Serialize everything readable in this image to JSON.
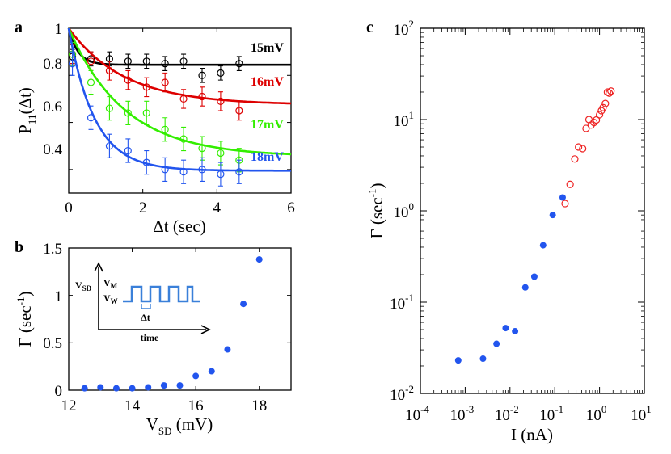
{
  "chart_data": [
    {
      "panel": "a",
      "type": "scatter",
      "xlabel": "Δt (sec)",
      "ylabel": {
        "main": "P",
        "sub": "11",
        "tail": "(Δt)"
      },
      "xlim": [
        0,
        6
      ],
      "ylim": [
        0.3,
        1.0
      ],
      "xticks": [
        "0",
        "2",
        "4",
        "6"
      ],
      "yticks": [
        "1",
        "0.8",
        "0.6",
        "0.4"
      ],
      "series": [
        {
          "name": "15mV",
          "color": "#000000",
          "plateau": 0.845,
          "tau": 0.25,
          "x": [
            0.1,
            0.6,
            1.1,
            1.6,
            2.1,
            2.6,
            3.1,
            3.6,
            4.1,
            4.6
          ],
          "y": [
            0.88,
            0.87,
            0.87,
            0.86,
            0.86,
            0.85,
            0.86,
            0.8,
            0.81,
            0.85
          ],
          "err": [
            0.03,
            0.03,
            0.03,
            0.03,
            0.03,
            0.03,
            0.03,
            0.03,
            0.03,
            0.03
          ]
        },
        {
          "name": "16mV",
          "color": "#dd0000",
          "plateau": 0.675,
          "tau": 1.5,
          "x": [
            0.1,
            0.6,
            1.1,
            1.6,
            2.1,
            2.6,
            3.1,
            3.6,
            4.1,
            4.6
          ],
          "y": [
            0.89,
            0.86,
            0.82,
            0.78,
            0.75,
            0.77,
            0.7,
            0.71,
            0.69,
            0.65
          ],
          "err": [
            0.04,
            0.04,
            0.04,
            0.04,
            0.04,
            0.04,
            0.04,
            0.04,
            0.04,
            0.04
          ]
        },
        {
          "name": "17mV",
          "color": "#33ee00",
          "plateau": 0.455,
          "tau": 1.5,
          "x": [
            0.1,
            0.6,
            1.1,
            1.6,
            2.1,
            2.6,
            3.1,
            3.6,
            4.1,
            4.6
          ],
          "y": [
            0.89,
            0.77,
            0.66,
            0.64,
            0.64,
            0.57,
            0.53,
            0.49,
            0.47,
            0.44
          ],
          "err": [
            0.05,
            0.05,
            0.05,
            0.05,
            0.05,
            0.05,
            0.05,
            0.05,
            0.05,
            0.05
          ]
        },
        {
          "name": "18mV",
          "color": "#2255ee",
          "plateau": 0.395,
          "tau": 0.7,
          "x": [
            0.1,
            0.6,
            1.1,
            1.6,
            2.1,
            2.6,
            3.1,
            3.6,
            4.1,
            4.6
          ],
          "y": [
            0.85,
            0.62,
            0.5,
            0.48,
            0.43,
            0.4,
            0.39,
            0.4,
            0.38,
            0.39
          ],
          "err": [
            0.05,
            0.05,
            0.05,
            0.05,
            0.05,
            0.05,
            0.05,
            0.05,
            0.05,
            0.05
          ]
        }
      ]
    },
    {
      "panel": "b",
      "type": "scatter",
      "xlabel": {
        "main": "V",
        "sub": "SD",
        "tail": " (mV)"
      },
      "ylabel": {
        "main": "Γ (sec",
        "sup": "-1",
        "tail": ")"
      },
      "xlim": [
        12,
        19
      ],
      "ylim": [
        0,
        1.5
      ],
      "xticks": [
        "12",
        "14",
        "16",
        "18"
      ],
      "yticks": [
        "0",
        "0.5",
        "1",
        "1.5"
      ],
      "color": "#2255ee",
      "x": [
        12.5,
        13.0,
        13.5,
        14.0,
        14.5,
        15.0,
        15.5,
        16.0,
        16.5,
        17.0,
        17.5,
        18.0
      ],
      "y": [
        0.02,
        0.03,
        0.02,
        0.02,
        0.03,
        0.05,
        0.05,
        0.15,
        0.2,
        0.43,
        0.91,
        1.38
      ],
      "inset": {
        "vsd": {
          "main": "V",
          "sub": "SD"
        },
        "vm": {
          "main": "V",
          "sub": "M"
        },
        "vw": {
          "main": "V",
          "sub": "W"
        },
        "dt": "Δt",
        "time": "time"
      }
    },
    {
      "panel": "c",
      "type": "scatter",
      "xscale": "log",
      "yscale": "log",
      "xlabel": "I (nA)",
      "ylabel": {
        "main": "Γ (sec",
        "sup": "-1",
        "tail": ")"
      },
      "xlim_exp": [
        -4,
        1
      ],
      "ylim_exp": [
        -2,
        2
      ],
      "xticks": [
        {
          "base": "10",
          "exp": "-4"
        },
        {
          "base": "10",
          "exp": "-3"
        },
        {
          "base": "10",
          "exp": "-2"
        },
        {
          "base": "10",
          "exp": "-1"
        },
        {
          "base": "10",
          "exp": "0"
        },
        {
          "base": "10",
          "exp": "1"
        }
      ],
      "yticks": [
        {
          "base": "10",
          "exp": "2"
        },
        {
          "base": "10",
          "exp": "1"
        },
        {
          "base": "10",
          "exp": "0"
        },
        {
          "base": "10",
          "exp": "-1"
        },
        {
          "base": "10",
          "exp": "-2"
        }
      ],
      "series": [
        {
          "name": "filled",
          "color": "#2255ee",
          "marker": "filled-circle",
          "x": [
            0.0007,
            0.0025,
            0.005,
            0.008,
            0.013,
            0.022,
            0.035,
            0.055,
            0.09,
            0.15
          ],
          "y": [
            0.023,
            0.024,
            0.035,
            0.052,
            0.048,
            0.145,
            0.19,
            0.42,
            0.9,
            1.4
          ]
        },
        {
          "name": "open",
          "color": "#ee2222",
          "marker": "open-circle",
          "x": [
            0.17,
            0.22,
            0.28,
            0.34,
            0.42,
            0.5,
            0.58,
            0.65,
            0.75,
            0.85,
            1.0,
            1.1,
            1.2,
            1.35,
            1.5,
            1.65,
            1.8
          ],
          "y": [
            1.2,
            1.95,
            3.7,
            5.0,
            4.8,
            8.0,
            10.0,
            8.7,
            9.3,
            9.9,
            11.3,
            12.5,
            13.5,
            15.0,
            20.0,
            19.5,
            20.5
          ]
        }
      ]
    }
  ]
}
